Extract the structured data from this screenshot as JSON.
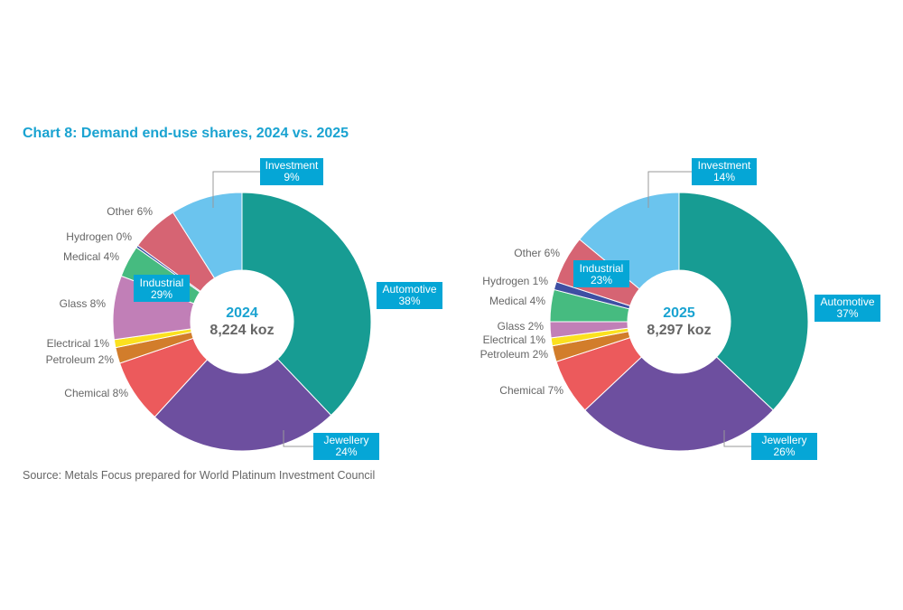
{
  "title": "Chart 8: Demand end-use shares, 2024 vs. 2025",
  "source": "Source: Metals Focus prepared for World Platinum Investment Council",
  "chart_data": [
    {
      "type": "donut",
      "year": "2024",
      "total": "8,224 koz",
      "categories": [
        "Automotive",
        "Jewellery",
        "Chemical",
        "Petroleum",
        "Electrical",
        "Glass",
        "Medical",
        "Hydrogen",
        "Other",
        "Investment"
      ],
      "values": [
        38,
        24,
        8,
        2,
        1,
        8,
        4,
        0,
        6,
        9
      ],
      "labels": [
        "Automotive 38%",
        "Jewellery 24%",
        "Chemical 8%",
        "Petroleum 2%",
        "Electrical 1%",
        "Glass 8%",
        "Medical 4%",
        "Hydrogen 0%",
        "Other 6%",
        "Investment 9%"
      ],
      "group_label": {
        "name": "Industrial",
        "value": "29%"
      }
    },
    {
      "type": "donut",
      "year": "2025",
      "total": "8,297 koz",
      "categories": [
        "Automotive",
        "Jewellery",
        "Chemical",
        "Petroleum",
        "Electrical",
        "Glass",
        "Medical",
        "Hydrogen",
        "Other",
        "Investment"
      ],
      "values": [
        37,
        26,
        7,
        2,
        1,
        2,
        4,
        1,
        6,
        14
      ],
      "labels": [
        "Automotive 37%",
        "Jewellery 26%",
        "Chemical 7%",
        "Petroleum 2%",
        "Electrical 1%",
        "Glass 2%",
        "Medical 4%",
        "Hydrogen 1%",
        "Other 6%",
        "Investment 14%"
      ],
      "group_label": {
        "name": "Industrial",
        "value": "23%"
      }
    }
  ],
  "colors": {
    "Automotive": "#179c93",
    "Jewellery": "#6d4f9f",
    "Chemical": "#ec5a5c",
    "Petroleum": "#d27d2b",
    "Electrical": "#fbe11f",
    "Glass": "#c17fb7",
    "Medical": "#46bb80",
    "Hydrogen": "#3e4fa3",
    "Other": "#d66473",
    "Investment": "#6bc4ee",
    "label_box": "#05a6d6",
    "title": "#1aa3d1"
  }
}
